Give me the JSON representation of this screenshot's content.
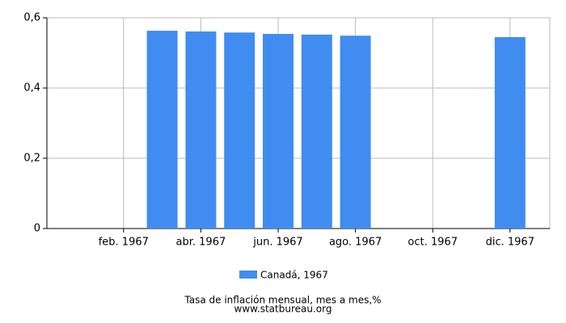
{
  "chart_data": {
    "type": "bar",
    "categories": [
      null,
      "feb. 1967",
      null,
      "abr. 1967",
      null,
      "jun. 1967",
      null,
      "ago. 1967",
      null,
      "oct. 1967",
      null,
      "dic. 1967"
    ],
    "series": [
      {
        "name": "Canadá, 1967",
        "color": "#418cf0",
        "values": [
          null,
          null,
          0.563,
          0.561,
          0.558,
          0.554,
          0.552,
          0.549,
          null,
          null,
          null,
          0.545
        ]
      }
    ],
    "ylim": [
      0,
      0.6
    ],
    "yticks": [
      0,
      {
        "value": 0.2,
        "label": "0,2"
      },
      {
        "value": 0.4,
        "label": "0,4"
      },
      {
        "value": 0.6,
        "label": "0,6"
      }
    ],
    "grid": true,
    "legend": "bottom",
    "footer": [
      "Tasa de inflación mensual, mes a mes,%",
      "www.statbureau.org"
    ]
  }
}
